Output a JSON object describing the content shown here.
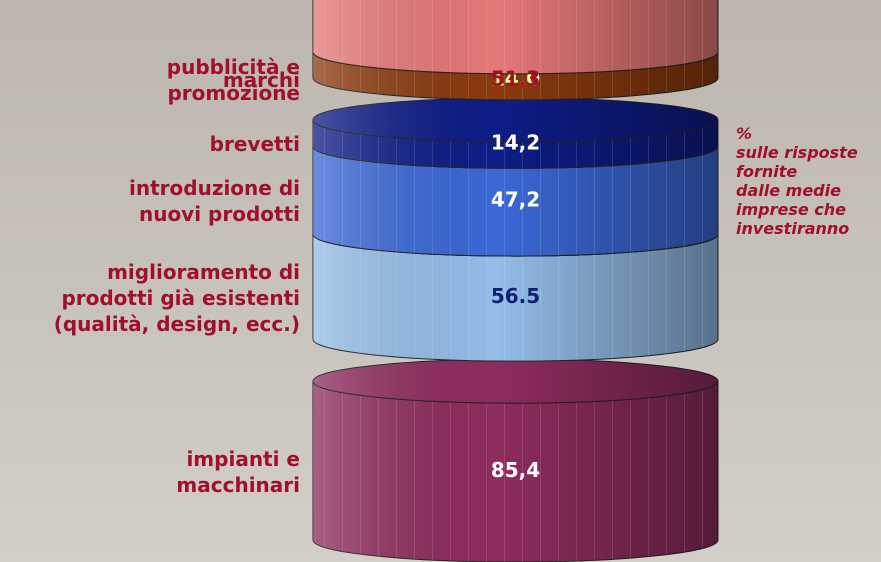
{
  "chart_data": {
    "type": "stacked-cylinder",
    "categories": [
      "impianti e\nmacchinari",
      "miglioramento di\nprodotti già esistenti\n(qualità, design, ecc.)",
      "introduzione di\nnuovi prodotti",
      "brevetti",
      "marchi",
      "pubblicità e\npromozione"
    ],
    "values": [
      85.4,
      56.5,
      47.2,
      14.2,
      14.0,
      51.3
    ],
    "value_labels": [
      "85,4",
      "56.5",
      "47,2",
      "14,2",
      "14,0",
      "51,3"
    ],
    "colors": [
      "#8e2c5e",
      "#94bde8",
      "#3b68d6",
      "#0e1c86",
      "#8a3a0e",
      "#e67878"
    ],
    "label_colors": [
      "#ffffff",
      "#0d1f6e",
      "#ffffff",
      "#ffffff",
      "#ffff99",
      "#a0102a"
    ],
    "annotation": "%\nsulle risposte\nfornite\ndalle medie\nimprese che\ninvestiranno"
  }
}
